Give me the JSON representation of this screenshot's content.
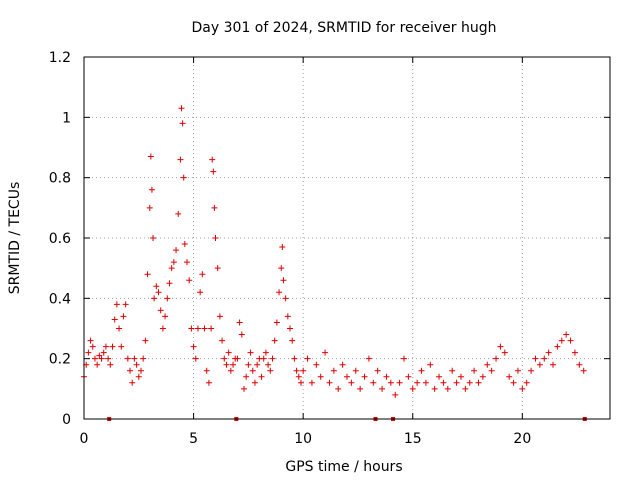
{
  "chart_data": {
    "type": "scatter",
    "title": "Day 301 of 2024, SRMTID for receiver hugh",
    "xlabel": "GPS time / hours",
    "ylabel": "SRMTID / TECUs",
    "xlim": [
      0,
      24
    ],
    "ylim": [
      0,
      1.2
    ],
    "xticks": [
      0,
      5,
      10,
      15,
      20
    ],
    "xtick_labels": [
      "0",
      "5",
      "10",
      "15",
      "20"
    ],
    "yticks": [
      0,
      0.2,
      0.4,
      0.6,
      0.8,
      1.0,
      1.2
    ],
    "ytick_labels": [
      "0",
      "0.2",
      "0.4",
      "0.6",
      "0.8",
      "1",
      "1.2"
    ],
    "grid": true,
    "marker": "+",
    "color": "#e00000",
    "gap_markers_x": [
      1.15,
      6.95,
      13.3,
      14.1,
      22.85
    ],
    "series": [
      {
        "name": "SRMTID",
        "x": [
          0.0,
          0.1,
          0.2,
          0.3,
          0.4,
          0.5,
          0.6,
          0.7,
          0.8,
          0.9,
          1.0,
          1.1,
          1.2,
          1.3,
          1.4,
          1.5,
          1.6,
          1.7,
          1.8,
          1.9,
          2.0,
          2.1,
          2.2,
          2.3,
          2.4,
          2.5,
          2.6,
          2.7,
          2.8,
          2.9,
          3.0,
          3.05,
          3.1,
          3.15,
          3.2,
          3.3,
          3.4,
          3.5,
          3.6,
          3.7,
          3.8,
          3.9,
          4.0,
          4.1,
          4.2,
          4.3,
          4.4,
          4.45,
          4.5,
          4.55,
          4.6,
          4.7,
          4.8,
          4.9,
          5.0,
          5.1,
          5.2,
          5.3,
          5.4,
          5.5,
          5.6,
          5.7,
          5.8,
          5.85,
          5.9,
          5.95,
          6.0,
          6.1,
          6.2,
          6.3,
          6.4,
          6.5,
          6.6,
          6.7,
          6.8,
          6.9,
          7.0,
          7.1,
          7.2,
          7.3,
          7.4,
          7.5,
          7.6,
          7.7,
          7.8,
          7.9,
          8.0,
          8.1,
          8.2,
          8.3,
          8.4,
          8.5,
          8.6,
          8.7,
          8.8,
          8.9,
          9.0,
          9.05,
          9.1,
          9.2,
          9.3,
          9.4,
          9.5,
          9.6,
          9.7,
          9.8,
          9.9,
          10.0,
          10.2,
          10.4,
          10.6,
          10.8,
          11.0,
          11.2,
          11.4,
          11.6,
          11.8,
          12.0,
          12.2,
          12.4,
          12.6,
          12.8,
          13.0,
          13.2,
          13.4,
          13.6,
          13.8,
          14.0,
          14.2,
          14.4,
          14.6,
          14.8,
          15.0,
          15.2,
          15.4,
          15.6,
          15.8,
          16.0,
          16.2,
          16.4,
          16.6,
          16.8,
          17.0,
          17.2,
          17.4,
          17.6,
          17.8,
          18.0,
          18.2,
          18.4,
          18.6,
          18.8,
          19.0,
          19.2,
          19.4,
          19.6,
          19.8,
          20.0,
          20.2,
          20.4,
          20.6,
          20.8,
          21.0,
          21.2,
          21.4,
          21.6,
          21.8,
          22.0,
          22.2,
          22.4,
          22.6,
          22.8
        ],
        "y": [
          0.14,
          0.18,
          0.22,
          0.26,
          0.24,
          0.2,
          0.18,
          0.21,
          0.2,
          0.22,
          0.24,
          0.2,
          0.18,
          0.24,
          0.33,
          0.38,
          0.3,
          0.24,
          0.34,
          0.38,
          0.2,
          0.16,
          0.12,
          0.2,
          0.18,
          0.14,
          0.16,
          0.2,
          0.26,
          0.48,
          0.7,
          0.87,
          0.76,
          0.6,
          0.4,
          0.44,
          0.42,
          0.36,
          0.3,
          0.34,
          0.4,
          0.45,
          0.5,
          0.52,
          0.56,
          0.68,
          0.86,
          1.03,
          0.98,
          0.8,
          0.58,
          0.52,
          0.46,
          0.3,
          0.24,
          0.2,
          0.3,
          0.42,
          0.48,
          0.3,
          0.16,
          0.12,
          0.3,
          0.86,
          0.82,
          0.7,
          0.6,
          0.5,
          0.34,
          0.26,
          0.2,
          0.18,
          0.22,
          0.16,
          0.18,
          0.2,
          0.2,
          0.32,
          0.28,
          0.1,
          0.14,
          0.18,
          0.22,
          0.16,
          0.12,
          0.18,
          0.2,
          0.14,
          0.2,
          0.22,
          0.18,
          0.16,
          0.2,
          0.26,
          0.32,
          0.42,
          0.5,
          0.57,
          0.46,
          0.4,
          0.34,
          0.3,
          0.26,
          0.2,
          0.16,
          0.14,
          0.12,
          0.16,
          0.2,
          0.12,
          0.18,
          0.14,
          0.22,
          0.12,
          0.16,
          0.1,
          0.18,
          0.14,
          0.12,
          0.16,
          0.1,
          0.14,
          0.2,
          0.12,
          0.16,
          0.1,
          0.14,
          0.12,
          0.08,
          0.12,
          0.2,
          0.14,
          0.1,
          0.12,
          0.16,
          0.12,
          0.18,
          0.1,
          0.14,
          0.12,
          0.1,
          0.16,
          0.12,
          0.14,
          0.1,
          0.12,
          0.16,
          0.12,
          0.14,
          0.18,
          0.16,
          0.2,
          0.24,
          0.22,
          0.14,
          0.12,
          0.16,
          0.1,
          0.12,
          0.16,
          0.2,
          0.18,
          0.2,
          0.22,
          0.18,
          0.24,
          0.26,
          0.28,
          0.26,
          0.22,
          0.18,
          0.16
        ]
      }
    ]
  }
}
